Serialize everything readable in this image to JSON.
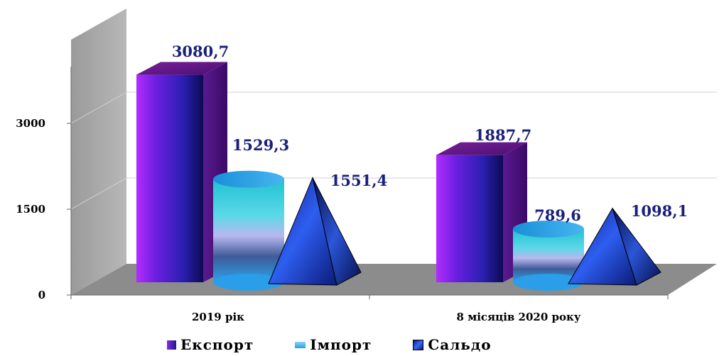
{
  "chart_data": {
    "type": "bar",
    "categories": [
      "2019 рік",
      "8 місяців 2020 року"
    ],
    "series": [
      {
        "name": "Експорт",
        "values": [
          3080.7,
          1887.7
        ],
        "labels": [
          "3080,7",
          "1887,7"
        ],
        "shape": "box",
        "color": "#5a18c8"
      },
      {
        "name": "Імпорт",
        "values": [
          1529.3,
          789.6
        ],
        "labels": [
          "1529,3",
          "789,6"
        ],
        "shape": "cylinder",
        "color": "#3aa8e8"
      },
      {
        "name": "Сальдо",
        "values": [
          1551.4,
          1098.1
        ],
        "labels": [
          "1551,4",
          "1098,1"
        ],
        "shape": "pyramid",
        "color": "#1f3fd0"
      }
    ],
    "yticks": [
      "0",
      "1500",
      "3000"
    ],
    "ylim": [
      0,
      3000
    ],
    "grid": true,
    "legend_position": "bottom"
  }
}
